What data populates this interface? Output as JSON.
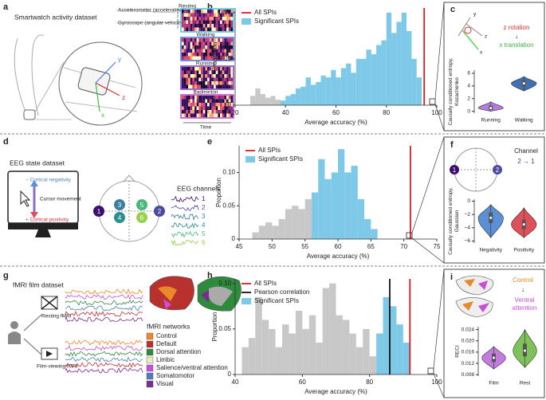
{
  "panel_labels": [
    "a",
    "b",
    "c",
    "d",
    "e",
    "f",
    "g",
    "h",
    "i"
  ],
  "panel_a": {
    "title": "Smartwatch activity dataset",
    "accelerometer": "Accelerometer (acceleration)",
    "gyroscope": "Gyroscope (angular velocity)",
    "axes": [
      "x",
      "y",
      "z",
      "x",
      "y",
      "z"
    ],
    "activities": [
      "Resting",
      "Walking",
      "Running",
      "Badminton"
    ],
    "time": "Time",
    "watch_axes": [
      "y",
      "z",
      "x"
    ]
  },
  "panel_c": {
    "axes": [
      "y",
      "z",
      "x"
    ],
    "rotation": "z rotation",
    "arrow": "↓",
    "translation": "x translation"
  },
  "panel_d": {
    "title": "EEG state dataset",
    "negativity": "− Cortical negativity",
    "cursor": "Cursor movement",
    "positivity": "+ Cortical positivity",
    "channels_title": "EEG channels",
    "electrodes": [
      "1",
      "2",
      "3",
      "4",
      "5",
      "6"
    ],
    "channel_labels": [
      "1",
      "2",
      "3",
      "4",
      "5",
      "6"
    ]
  },
  "panel_f": {
    "title": "Channel",
    "direction": "2 → 1",
    "electrodes": [
      "1",
      "2"
    ]
  },
  "panel_g": {
    "title": "fMRI film dataset",
    "resting": "Resting fMRI",
    "film": "Film-viewing fMRI",
    "networks_title": "fMRI networks",
    "networks": [
      {
        "name": "Control",
        "color": "#e8892a"
      },
      {
        "name": "Default",
        "color": "#b8312f"
      },
      {
        "name": "Dorsal attention",
        "color": "#2e8b3e"
      },
      {
        "name": "Limbic",
        "color": "#ece7c4"
      },
      {
        "name": "Salience/ventral attention",
        "color": "#c84fd8"
      },
      {
        "name": "Somatomotor",
        "color": "#4a7fb8"
      },
      {
        "name": "Visual",
        "color": "#7b2d8e"
      }
    ]
  },
  "panel_i": {
    "source": "Control",
    "arrow": "↓",
    "target": "Ventral attention"
  },
  "chart_data": [
    {
      "type": "histogram",
      "xlabel": "Average accuracy (%)",
      "ylabel": "Proportion",
      "bins": [
        26,
        28,
        30,
        32,
        34,
        36,
        38,
        40,
        42,
        44,
        46,
        48,
        50,
        52,
        54,
        56,
        58,
        60,
        62,
        64,
        66,
        68,
        70,
        72,
        74,
        76,
        78,
        80,
        82,
        84,
        86,
        88,
        90,
        92,
        94
      ],
      "series": [
        {
          "color": "#c8c8c8",
          "values": [
            0.01,
            0.018,
            0.012,
            0.008,
            0.01,
            0.006,
            0,
            0,
            0,
            0,
            0,
            0,
            0,
            0,
            0,
            0,
            0,
            0,
            0,
            0,
            0,
            0,
            0,
            0,
            0,
            0,
            0,
            0,
            0,
            0,
            0,
            0,
            0,
            0
          ]
        },
        {
          "name": "Significant SPIs",
          "color": "#7ec8e8",
          "values": [
            0,
            0,
            0,
            0,
            0,
            0,
            0.005,
            0.01,
            0.012,
            0.018,
            0.02,
            0.03,
            0.022,
            0.025,
            0.032,
            0.03,
            0.038,
            0.03,
            0.04,
            0.045,
            0.035,
            0.05,
            0.05,
            0.06,
            0.055,
            0.065,
            0.07,
            0.1,
            0.078,
            0.09,
            0.1,
            0.08,
            0.05,
            0.03
          ]
        }
      ],
      "lines": [
        {
          "name": "All SPIs",
          "color": "#e31a1c",
          "value": 95
        }
      ],
      "xlim": [
        20,
        100
      ],
      "xticks": [
        20,
        40,
        60,
        80,
        100
      ],
      "ylim": [
        0,
        0.105
      ],
      "yticks": [
        0,
        0.05,
        {
          "value": 0.1,
          "label": "0.10"
        }
      ]
    },
    {
      "type": "violin",
      "ylabel": "Causally conditioned entropy, Kozachenko",
      "categories": [
        "Running",
        "Walking"
      ],
      "colors": [
        "#b57be0",
        "#3f6fb5"
      ],
      "values": [
        0.5,
        4.4
      ],
      "min": [
        0,
        3.2
      ],
      "max": [
        1.5,
        5.5
      ],
      "q1": [
        0.2,
        3.9
      ],
      "q3": [
        0.9,
        4.9
      ],
      "ylim": [
        -0.3,
        6.5
      ],
      "yticks": [
        0,
        2,
        4,
        6
      ]
    },
    {
      "type": "histogram",
      "xlabel": "Average accuracy (%)",
      "ylabel": "Proportion",
      "bins": [
        47,
        48,
        49,
        50,
        51,
        52,
        53,
        54,
        55,
        56,
        57,
        58,
        59,
        60,
        61,
        62,
        63,
        64,
        65,
        66
      ],
      "series": [
        {
          "color": "#c8c8c8",
          "values": [
            0.01,
            0.02,
            0.025,
            0.02,
            0.03,
            0.045,
            0.05,
            0.045,
            0.06,
            0,
            0,
            0,
            0,
            0,
            0,
            0,
            0,
            0,
            0
          ]
        },
        {
          "name": "Significant SPIs",
          "color": "#7ec8e8",
          "values": [
            0,
            0,
            0,
            0,
            0,
            0,
            0,
            0,
            0,
            0.07,
            0.12,
            0.09,
            0.1,
            0.135,
            0.1,
            0.11,
            0.06,
            0.03,
            0.015
          ]
        }
      ],
      "lines": [
        {
          "name": "All SPIs",
          "color": "#e31a1c",
          "value": 71
        }
      ],
      "xlim": [
        45,
        75
      ],
      "xticks": [
        45,
        50,
        55,
        60,
        65,
        70,
        75
      ],
      "ylim": [
        0,
        0.14
      ],
      "yticks": [
        0,
        0.05,
        {
          "value": 0.1,
          "label": "0.10"
        }
      ]
    },
    {
      "type": "violin",
      "ylabel": "Causally conditioned entropy, Gaussian",
      "categories": [
        "Negativity",
        "Positivity"
      ],
      "colors": [
        "#5b8fd6",
        "#e0505a"
      ],
      "values": [
        -2.5,
        -3.5
      ],
      "min": [
        -5.5,
        -5.5
      ],
      "max": [
        -0.5,
        -1
      ],
      "q1": [
        -3.3,
        -4.2
      ],
      "q3": [
        -1.7,
        -2.8
      ],
      "ylim": [
        -6.3,
        0.3
      ],
      "yticks": [
        {
          "value": -6,
          "label": "−6"
        },
        {
          "value": -4,
          "label": "−4"
        },
        {
          "value": -2,
          "label": "−2"
        },
        0
      ]
    },
    {
      "type": "histogram",
      "xlabel": "Average accuracy (%)",
      "ylabel": "Proportion",
      "bins": [
        42,
        44,
        46,
        48,
        50,
        52,
        54,
        56,
        58,
        60,
        62,
        64,
        66,
        68,
        70,
        72,
        74,
        76,
        78,
        80,
        82,
        84,
        86,
        88,
        90,
        92
      ],
      "series": [
        {
          "color": "#c8c8c8",
          "values": [
            0.03,
            0.04,
            0.085,
            0.06,
            0.05,
            0.03,
            0.055,
            0.045,
            0.07,
            0.05,
            0.065,
            0.035,
            0.095,
            0.1,
            0.065,
            0.06,
            0.045,
            0.03,
            0.05,
            0.02,
            0,
            0,
            0,
            0,
            0
          ]
        },
        {
          "name": "Significant SPIs",
          "color": "#7ec8e8",
          "values": [
            0,
            0,
            0,
            0,
            0,
            0,
            0,
            0,
            0,
            0,
            0,
            0,
            0,
            0,
            0,
            0,
            0,
            0,
            0,
            0,
            0.045,
            0.085,
            0.075,
            0.055,
            0.035
          ]
        }
      ],
      "lines": [
        {
          "name": "All SPIs",
          "color": "#e31a1c",
          "value": 92
        },
        {
          "name": "Pearson correlation",
          "color": "#111111",
          "value": 86
        }
      ],
      "xlim": [
        40,
        100
      ],
      "xticks": [
        40,
        60,
        80,
        100
      ],
      "ylim": [
        0,
        0.105
      ],
      "yticks": [
        0,
        0.05,
        {
          "value": 0.1,
          "label": "0.10"
        }
      ]
    },
    {
      "type": "violin",
      "ylabel": "RECI",
      "categories": [
        "Film",
        "Rest"
      ],
      "colors": [
        "#c47be0",
        "#7fc25a"
      ],
      "values": [
        0.014,
        0.0165
      ],
      "min": [
        0.01,
        0.0105
      ],
      "max": [
        0.018,
        0.024
      ],
      "q1": [
        0.0125,
        0.0145
      ],
      "q3": [
        0.0155,
        0.019
      ],
      "ylim": [
        0.0075,
        0.025
      ],
      "yticks": [
        0.008,
        0.012,
        0.016,
        {
          "value": 0.02,
          "label": "0.020"
        },
        {
          "value": 0.024,
          "label": "0.024"
        }
      ]
    }
  ]
}
